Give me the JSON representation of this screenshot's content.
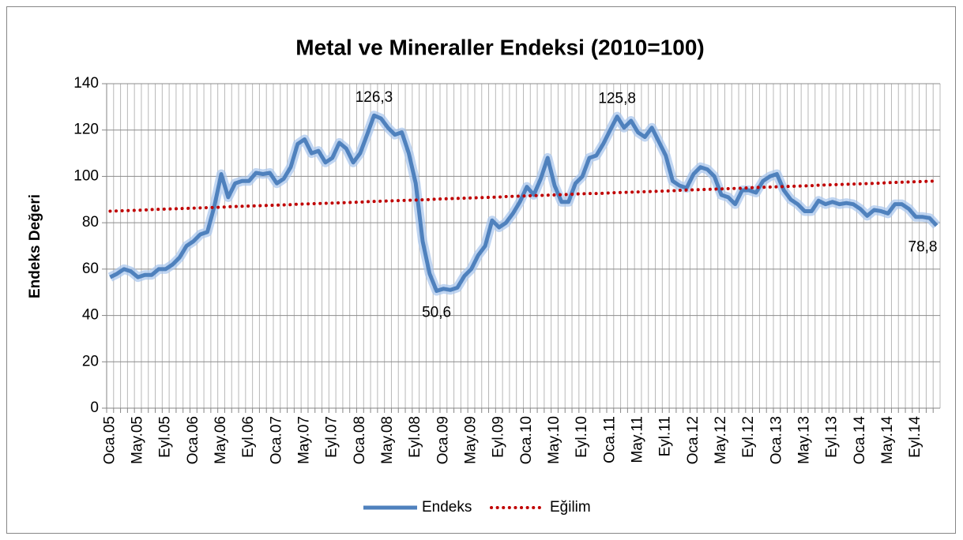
{
  "chart_data": {
    "type": "line",
    "title": "Metal ve Mineraller Endeksi (2010=100)",
    "y_label": "Endeks Değeri",
    "categories": [
      "Oca.05",
      null,
      null,
      null,
      "May.05",
      null,
      null,
      null,
      "Eyl.05",
      null,
      null,
      null,
      "Oca.06",
      null,
      null,
      null,
      "May.06",
      null,
      null,
      null,
      "Eyl.06",
      null,
      null,
      null,
      "Oca.07",
      null,
      null,
      null,
      "May.07",
      null,
      null,
      null,
      "Eyl.07",
      null,
      null,
      null,
      "Oca.08",
      null,
      null,
      null,
      "May.08",
      null,
      null,
      null,
      "Eyl.08",
      null,
      null,
      null,
      "Oca.09",
      null,
      null,
      null,
      "May.09",
      null,
      null,
      null,
      "Eyl.09",
      null,
      null,
      null,
      "Oca.10",
      null,
      null,
      null,
      "May.10",
      null,
      null,
      null,
      "Eyl.10",
      null,
      null,
      null,
      "Oca.11",
      null,
      null,
      null,
      "May.11",
      null,
      null,
      null,
      "Eyl.11",
      null,
      null,
      null,
      "Oca.12",
      null,
      null,
      null,
      "May.12",
      null,
      null,
      null,
      "Eyl.12",
      null,
      null,
      null,
      "Oca.13",
      null,
      null,
      null,
      "May.13",
      null,
      null,
      null,
      "Eyl.13",
      null,
      null,
      null,
      "Oca.14",
      null,
      null,
      null,
      "May.14",
      null,
      null,
      null,
      "Eyl.14",
      null,
      null,
      null
    ],
    "series": [
      {
        "name": "Endeks",
        "color": "#4f81bd",
        "line_style": "solid",
        "values": [
          56.5,
          58,
          60,
          59,
          56.5,
          57.5,
          57.5,
          60,
          60,
          62,
          65,
          70,
          72,
          75,
          76,
          87,
          101,
          91,
          97,
          98,
          98,
          101.5,
          101,
          101.5,
          97,
          99,
          104,
          114,
          116,
          110,
          111,
          106,
          108,
          114.5,
          112,
          106,
          110,
          118,
          126.3,
          125,
          121,
          118,
          119,
          110,
          97,
          72,
          58,
          50.6,
          51.5,
          51,
          52,
          57,
          60,
          66,
          70,
          81,
          78,
          80,
          84,
          89,
          95.5,
          92,
          99,
          108,
          96,
          89,
          89,
          97,
          100,
          108,
          109,
          114,
          120,
          125.8,
          121,
          124,
          119,
          117,
          121,
          115,
          109,
          98,
          96,
          95,
          101,
          104,
          103,
          100,
          92,
          91,
          88,
          94,
          94,
          93,
          98,
          100,
          101,
          94,
          90,
          88,
          85,
          85,
          89.5,
          88,
          89,
          88,
          88.5,
          88,
          86,
          83,
          85.5,
          85,
          84,
          88,
          88,
          86,
          82.5,
          82.5,
          82,
          78.8
        ],
        "value_labels": [
          null,
          null,
          null,
          null,
          null,
          null,
          null,
          null,
          null,
          null,
          null,
          null,
          null,
          null,
          null,
          null,
          null,
          null,
          null,
          null,
          null,
          null,
          null,
          null,
          null,
          null,
          null,
          null,
          null,
          null,
          null,
          null,
          null,
          null,
          null,
          null,
          null,
          null,
          "126,3",
          null,
          null,
          null,
          null,
          null,
          null,
          null,
          null,
          "50,6",
          null,
          null,
          null,
          null,
          null,
          null,
          null,
          null,
          null,
          null,
          null,
          null,
          null,
          null,
          null,
          null,
          null,
          null,
          null,
          null,
          null,
          null,
          null,
          null,
          null,
          "125,8",
          null,
          null,
          null,
          null,
          null,
          null,
          null,
          null,
          null,
          null,
          null,
          null,
          null,
          null,
          null,
          null,
          null,
          null,
          null,
          null,
          null,
          null,
          null,
          null,
          null,
          null,
          null,
          null,
          null,
          null,
          null,
          null,
          null,
          null,
          null,
          null,
          null,
          null,
          null,
          null,
          null,
          null,
          null,
          null,
          null,
          "78,8"
        ]
      },
      {
        "name": "Eğilim",
        "color": "#c00000",
        "line_style": "dotted",
        "values": [
          85.0,
          85.1,
          85.2,
          85.3,
          85.4,
          85.5,
          85.7,
          85.8,
          85.9,
          86.0,
          86.1,
          86.2,
          86.3,
          86.4,
          86.5,
          86.6,
          86.7,
          86.9,
          87.0,
          87.1,
          87.2,
          87.3,
          87.4,
          87.5,
          87.6,
          87.7,
          87.8,
          88.0,
          88.1,
          88.2,
          88.3,
          88.4,
          88.5,
          88.6,
          88.7,
          88.8,
          88.9,
          89.1,
          89.2,
          89.3,
          89.4,
          89.5,
          89.6,
          89.7,
          89.8,
          89.9,
          90.0,
          90.2,
          90.3,
          90.4,
          90.5,
          90.6,
          90.7,
          90.8,
          90.9,
          91.0,
          91.1,
          91.3,
          91.4,
          91.5,
          91.6,
          91.7,
          91.8,
          91.9,
          92.0,
          92.1,
          92.2,
          92.4,
          92.5,
          92.6,
          92.6,
          92.7,
          92.9,
          93.0,
          93.1,
          93.2,
          93.3,
          93.4,
          93.5,
          93.6,
          93.7,
          93.8,
          94.0,
          94.1,
          94.2,
          94.3,
          94.4,
          94.5,
          94.6,
          94.7,
          94.8,
          94.9,
          95.1,
          95.2,
          95.3,
          95.4,
          95.5,
          95.6,
          95.7,
          95.8,
          95.9,
          96.0,
          96.2,
          96.3,
          96.4,
          96.5,
          96.6,
          96.7,
          96.8,
          96.9,
          97.0,
          97.1,
          97.3,
          97.4,
          97.5,
          97.6,
          97.7,
          97.8,
          97.9,
          98.0
        ]
      }
    ],
    "ylim": [
      0,
      140
    ],
    "yticks": [
      0,
      20,
      40,
      60,
      80,
      100,
      120,
      140
    ],
    "grid": true,
    "legend": "bottom"
  }
}
